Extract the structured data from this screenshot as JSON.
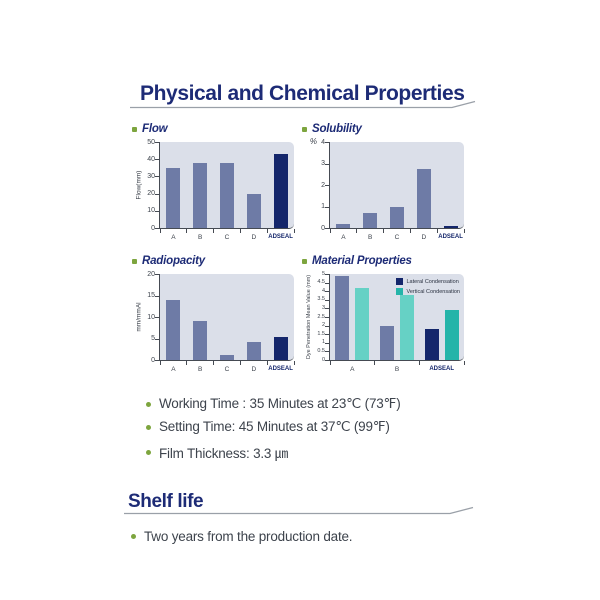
{
  "page": {
    "section1": {
      "title": "Physical and Chemical Properties"
    },
    "section2": {
      "title": "Shelf life",
      "bullet": "Two years from the production date."
    },
    "property_bullets": [
      "Working Time :  35 Minutes at 23℃  (73℉)",
      "Setting Time:  45 Minutes at 37℃  (99℉)",
      "Film Thickness:  3.3 ㎛"
    ]
  },
  "colors": {
    "navy": "#14266b",
    "slate": "#6e7ba6",
    "teal": "#66d1c5",
    "teal_dark": "#25b4a9",
    "plot_bg": "#dbdfe9",
    "heading": "#1d2b76",
    "green": "#7da53e",
    "text": "#3d434c",
    "axis": "#454a52",
    "rule": "#9aa0a8"
  },
  "chart_data": [
    {
      "type": "bar",
      "title": "Flow",
      "ylabel": "Flow(mm)",
      "categories": [
        "A",
        "B",
        "C",
        "D",
        "ADSEAL"
      ],
      "values": [
        35,
        38,
        38,
        20,
        43
      ],
      "bar_colors": [
        "slate",
        "slate",
        "slate",
        "slate",
        "navy"
      ],
      "ylim": [
        0,
        50
      ],
      "yticks": [
        0,
        10,
        20,
        30,
        40,
        50
      ],
      "highlight_category": "ADSEAL",
      "grid": false,
      "legend_position": "none"
    },
    {
      "type": "bar",
      "title": "Solubility",
      "ylabel": "%",
      "categories": [
        "A",
        "B",
        "C",
        "D",
        "ADSEAL"
      ],
      "values": [
        0.2,
        0.7,
        1.0,
        2.75,
        0.1
      ],
      "bar_colors": [
        "slate",
        "slate",
        "slate",
        "slate",
        "navy"
      ],
      "ylim": [
        0,
        4
      ],
      "yticks": [
        0,
        1,
        2,
        3,
        4
      ],
      "highlight_category": "ADSEAL",
      "grid": false,
      "legend_position": "none"
    },
    {
      "type": "bar",
      "title": "Radiopacity",
      "ylabel": "mm/mmAl",
      "categories": [
        "A",
        "B",
        "C",
        "D",
        "ADSEAL"
      ],
      "values": [
        14,
        9,
        1.2,
        4.2,
        5.3
      ],
      "bar_colors": [
        "slate",
        "slate",
        "slate",
        "slate",
        "navy"
      ],
      "ylim": [
        0,
        20
      ],
      "yticks": [
        0,
        5,
        10,
        15,
        20
      ],
      "highlight_category": "ADSEAL",
      "grid": false,
      "legend_position": "none"
    },
    {
      "type": "bar",
      "title": "Material Properties",
      "ylabel": "Dye Penetration Mean Value (mm)",
      "categories": [
        "A",
        "B",
        "ADSEAL"
      ],
      "series": [
        {
          "name": "Lateral Condensation",
          "legend_color": "navy",
          "values": [
            4.9,
            2.0,
            1.8
          ],
          "bar_colors": [
            "slate",
            "slate",
            "navy"
          ]
        },
        {
          "name": "Vertical Condensation",
          "legend_color": "teal_dark",
          "values": [
            4.2,
            3.8,
            2.9
          ],
          "bar_colors": [
            "teal",
            "teal",
            "teal_dark"
          ]
        }
      ],
      "ylim": [
        0,
        5
      ],
      "yticks": [
        0,
        0.5,
        1,
        1.5,
        2,
        2.5,
        3,
        3.5,
        4,
        4.5,
        5
      ],
      "highlight_category": "ADSEAL",
      "grid": false,
      "legend_position": "top-right"
    }
  ]
}
